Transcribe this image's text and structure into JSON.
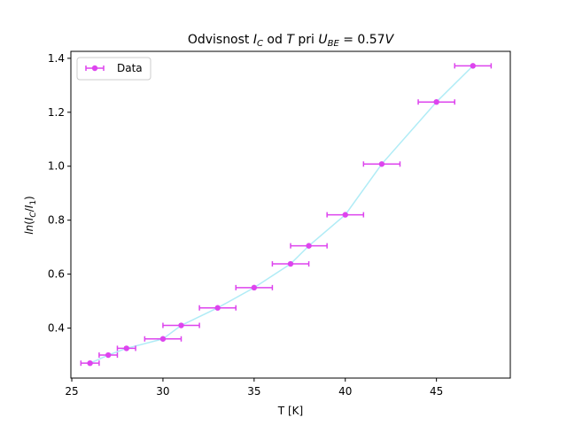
{
  "chart_data": {
    "type": "scatter",
    "title_parts": {
      "prefix": "Odvisnost ",
      "ic_main": "I",
      "ic_sub": "C",
      "middle": " od ",
      "t_var": "T",
      "pri": " pri ",
      "ube_main": "U",
      "ube_sub": "BE",
      "suffix": " = 0.57",
      "unit": "V"
    },
    "xlabel": "T [K]",
    "ylabel_parts": {
      "ln": "ln",
      "open": "(",
      "num_main": "I",
      "num_sub": "C",
      "slash": "/",
      "den_main": "I",
      "den_sub": "1",
      "close": ")"
    },
    "xlim": [
      24.95,
      49.05
    ],
    "ylim": [
      0.2148,
      1.4257
    ],
    "xticks": [
      25,
      30,
      35,
      40,
      45
    ],
    "yticks": [
      0.4,
      0.6,
      0.8,
      1.0,
      1.2,
      1.4
    ],
    "xtick_labels": [
      "25",
      "30",
      "35",
      "40",
      "45"
    ],
    "ytick_labels": [
      "0.4",
      "0.6",
      "0.8",
      "1.0",
      "1.2",
      "1.4"
    ],
    "grid": false,
    "legend": {
      "position": "top-left",
      "entries": [
        "Data"
      ]
    },
    "series": [
      {
        "name": "Data",
        "marker_color": "#dd44ee",
        "line_color": "#b0ecf6",
        "x": [
          26,
          27,
          28,
          30,
          31,
          33,
          35,
          37,
          38,
          40,
          42,
          45,
          47
        ],
        "y": [
          0.27,
          0.3,
          0.325,
          0.36,
          0.41,
          0.475,
          0.55,
          0.638,
          0.705,
          0.82,
          1.008,
          1.238,
          1.372
        ],
        "xerr": [
          0.5,
          0.5,
          0.5,
          1,
          1,
          1,
          1,
          1,
          1,
          1,
          1,
          1,
          1
        ]
      }
    ]
  }
}
